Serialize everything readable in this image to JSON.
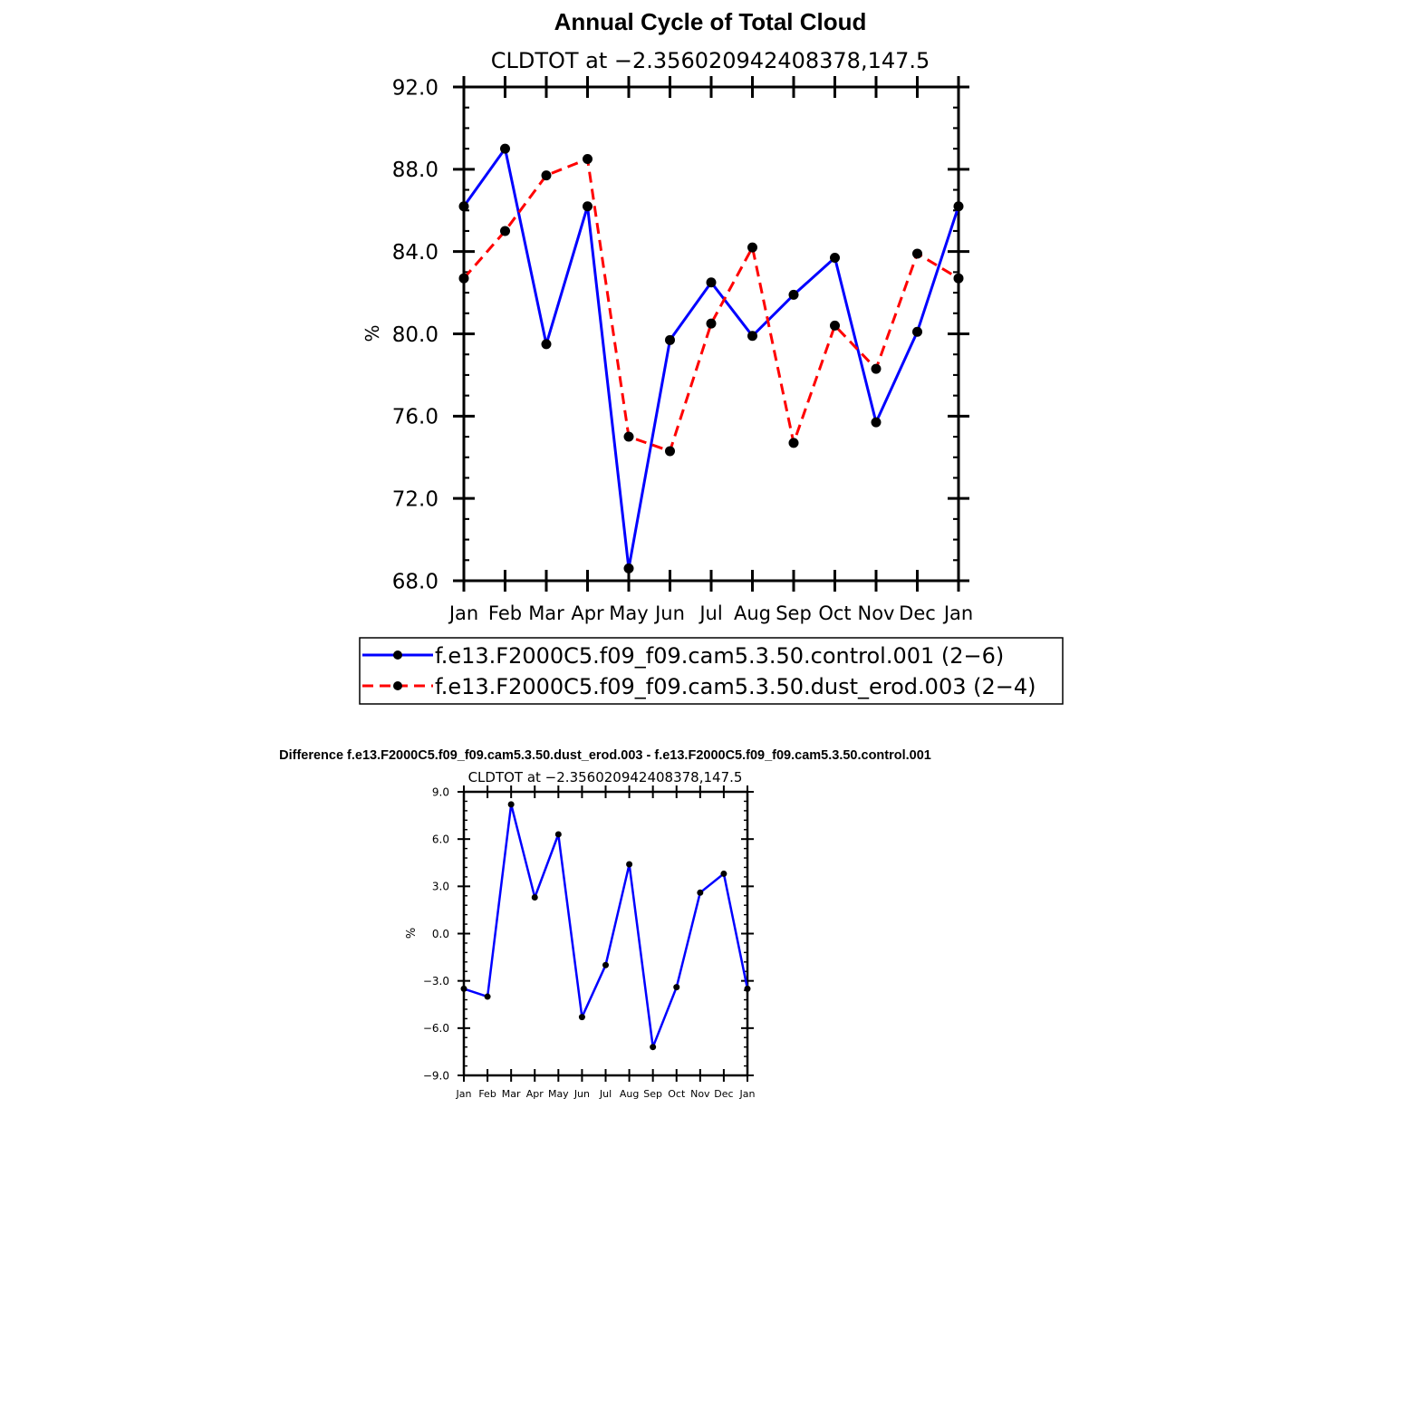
{
  "chart_data": [
    {
      "type": "line",
      "title": "Annual Cycle of Total Cloud",
      "subtitle": "CLDTOT at −2.356020942408378,147.5",
      "xlabel": "",
      "ylabel": "%",
      "ylim": [
        68.0,
        92.0
      ],
      "yticks": [
        "68.0",
        "72.0",
        "76.0",
        "80.0",
        "84.0",
        "88.0",
        "92.0"
      ],
      "yticks_values": [
        68,
        72,
        76,
        80,
        84,
        88,
        92
      ],
      "categories": [
        "Jan",
        "Feb",
        "Mar",
        "Apr",
        "May",
        "Jun",
        "Jul",
        "Aug",
        "Sep",
        "Oct",
        "Nov",
        "Dec",
        "Jan"
      ],
      "series": [
        {
          "name": "f.e13.F2000C5.f09_f09.cam5.3.50.control.001 (2−6)",
          "color": "#0000ff",
          "dash": "solid",
          "values": [
            86.2,
            89.0,
            79.5,
            86.2,
            68.6,
            79.7,
            82.5,
            79.9,
            81.9,
            83.7,
            75.7,
            80.1,
            86.2
          ]
        },
        {
          "name": "f.e13.F2000C5.f09_f09.cam5.3.50.dust_erod.003 (2−4)",
          "color": "#ff0000",
          "dash": "dashed",
          "values": [
            82.7,
            85.0,
            87.7,
            88.5,
            75.0,
            74.3,
            80.5,
            84.2,
            74.7,
            80.4,
            78.3,
            83.9,
            82.7
          ]
        }
      ]
    },
    {
      "type": "line",
      "title": "Difference f.e13.F2000C5.f09_f09.cam5.3.50.dust_erod.003 - f.e13.F2000C5.f09_f09.cam5.3.50.control.001",
      "subtitle": "CLDTOT at −2.356020942408378,147.5",
      "xlabel": "",
      "ylabel": "%",
      "ylim": [
        -9.0,
        9.0
      ],
      "yticks": [
        "−9.0",
        "−6.0",
        "−3.0",
        "0.0",
        "3.0",
        "6.0",
        "9.0"
      ],
      "yticks_values": [
        -9,
        -6,
        -3,
        0,
        3,
        6,
        9
      ],
      "categories": [
        "Jan",
        "Feb",
        "Mar",
        "Apr",
        "May",
        "Jun",
        "Jul",
        "Aug",
        "Sep",
        "Oct",
        "Nov",
        "Dec",
        "Jan"
      ],
      "series": [
        {
          "name": "difference",
          "color": "#0000ff",
          "dash": "solid",
          "values": [
            -3.5,
            -4.0,
            8.2,
            2.3,
            6.3,
            -5.3,
            -2.0,
            4.4,
            -7.2,
            -3.4,
            2.6,
            3.8,
            -3.5
          ]
        }
      ]
    }
  ]
}
